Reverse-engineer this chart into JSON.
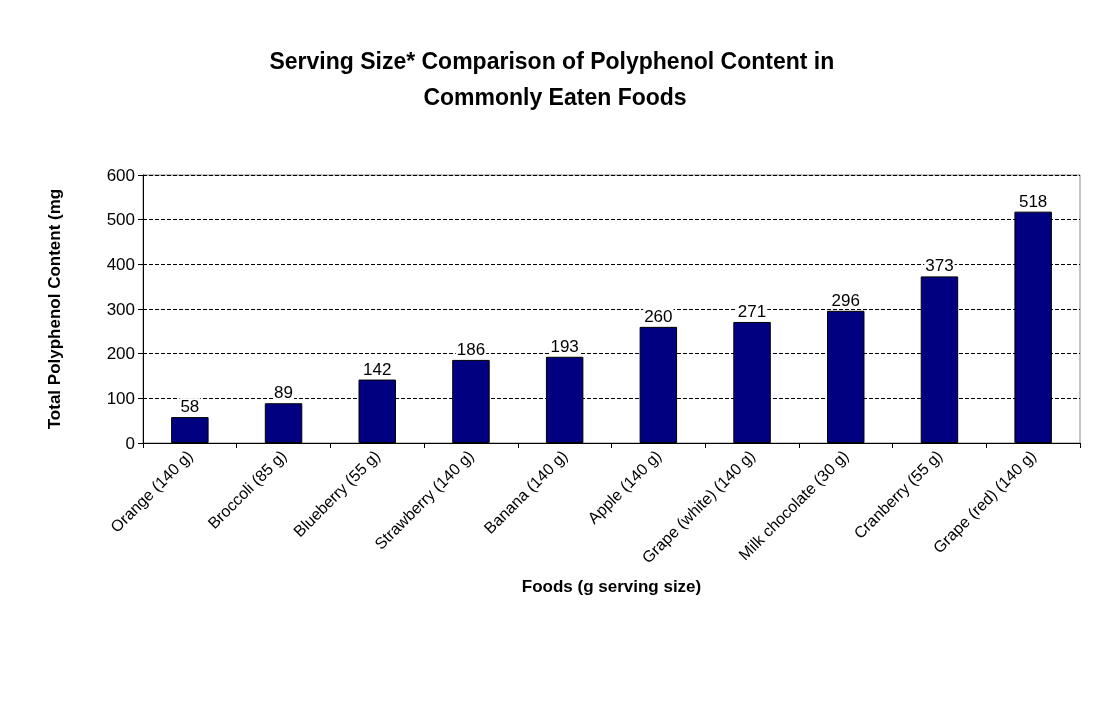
{
  "chart_data": {
    "type": "bar",
    "title": "Serving Size* Comparison of Polyphenol Content in Commonly Eaten Foods",
    "xlabel": "Foods (g serving size)",
    "ylabel": "Total Polyphenol Content (mg",
    "categories": [
      "Orange (140 g)",
      "Broccoli (85 g)",
      "Blueberry (55 g)",
      "Strawberry (140 g)",
      "Banana (140 g)",
      "Apple (140 g)",
      "Grape (white) (140 g)",
      "Milk chocolate (30 g)",
      "Cranberry (55 g)",
      "Grape (red) (140 g)"
    ],
    "values": [
      58,
      89,
      142,
      186,
      193,
      260,
      271,
      296,
      373,
      518
    ],
    "color": "#000080",
    "ylim": [
      0,
      600
    ],
    "yticks": [
      0,
      100,
      200,
      300,
      400,
      500,
      600
    ],
    "grid": "y",
    "data_labels": true
  }
}
